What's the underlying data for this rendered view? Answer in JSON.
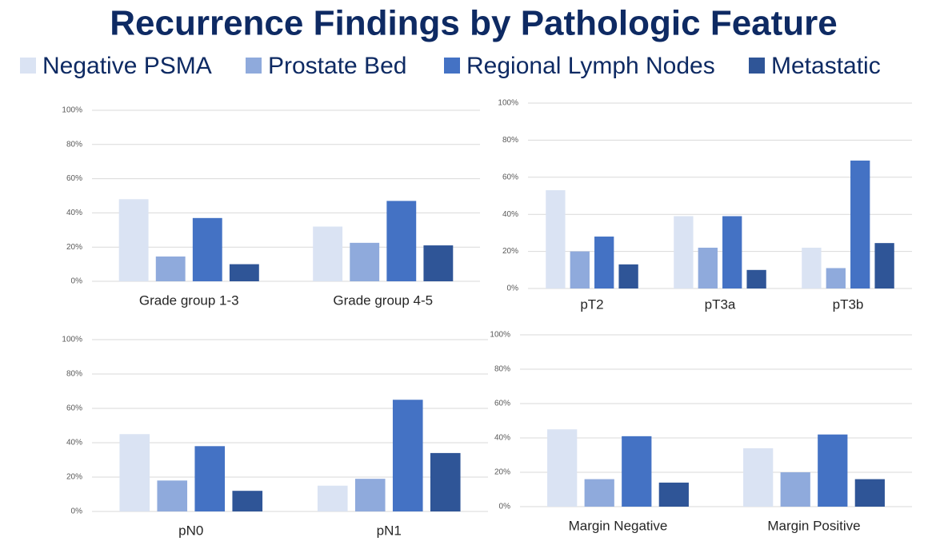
{
  "title": "Recurrence Findings by Pathologic Feature",
  "chart_data": [
    {
      "type": "bar",
      "categories": [
        "Grade group 1-3",
        "Grade group 4-5"
      ],
      "series": [
        {
          "name": "Negative PSMA",
          "color": "#dae3f3",
          "values": [
            48,
            32
          ]
        },
        {
          "name": "Prostate Bed",
          "color": "#8faadc",
          "values": [
            14.5,
            22.5
          ]
        },
        {
          "name": "Regional Lymph Nodes",
          "color": "#4472c4",
          "values": [
            37,
            47
          ]
        },
        {
          "name": "Metastatic",
          "color": "#2f5597",
          "values": [
            10,
            21
          ]
        }
      ],
      "ylim": [
        0,
        100
      ],
      "yticks": [
        {
          "value": 0,
          "label": "0%"
        },
        {
          "value": 20,
          "label": "20%"
        },
        {
          "value": 40,
          "label": "40%"
        },
        {
          "value": 60,
          "label": "60%"
        },
        {
          "value": 80,
          "label": "80%"
        },
        {
          "value": 100,
          "label": "100%"
        }
      ],
      "grid": true
    },
    {
      "type": "bar",
      "categories": [
        "pT2",
        "pT3a",
        "pT3b"
      ],
      "series": [
        {
          "name": "Negative PSMA",
          "color": "#dae3f3",
          "values": [
            53,
            39,
            22
          ]
        },
        {
          "name": "Prostate Bed",
          "color": "#8faadc",
          "values": [
            20,
            22,
            11
          ]
        },
        {
          "name": "Regional Lymph Nodes",
          "color": "#4472c4",
          "values": [
            28,
            39,
            69
          ]
        },
        {
          "name": "Metastatic",
          "color": "#2f5597",
          "values": [
            13,
            10,
            24.5
          ]
        }
      ],
      "ylim": [
        0,
        100
      ],
      "yticks": [
        {
          "value": 0,
          "label": "0%"
        },
        {
          "value": 20,
          "label": "20%"
        },
        {
          "value": 40,
          "label": "40%"
        },
        {
          "value": 60,
          "label": "60%"
        },
        {
          "value": 80,
          "label": "80%"
        },
        {
          "value": 100,
          "label": "100%"
        }
      ],
      "grid": true
    },
    {
      "type": "bar",
      "categories": [
        "pN0",
        "pN1"
      ],
      "series": [
        {
          "name": "Negative PSMA",
          "color": "#dae3f3",
          "values": [
            45,
            15
          ]
        },
        {
          "name": "Prostate Bed",
          "color": "#8faadc",
          "values": [
            18,
            19
          ]
        },
        {
          "name": "Regional Lymph Nodes",
          "color": "#4472c4",
          "values": [
            38,
            65
          ]
        },
        {
          "name": "Metastatic",
          "color": "#2f5597",
          "values": [
            12,
            34
          ]
        }
      ],
      "ylim": [
        0,
        100
      ],
      "yticks": [
        {
          "value": 0,
          "label": "0%"
        },
        {
          "value": 20,
          "label": "20%"
        },
        {
          "value": 40,
          "label": "40%"
        },
        {
          "value": 60,
          "label": "60%"
        },
        {
          "value": 80,
          "label": "80%"
        },
        {
          "value": 100,
          "label": "100%"
        }
      ],
      "grid": true
    },
    {
      "type": "bar",
      "categories": [
        "Margin Negative",
        "Margin Positive"
      ],
      "series": [
        {
          "name": "Negative PSMA",
          "color": "#dae3f3",
          "values": [
            45,
            34
          ]
        },
        {
          "name": "Prostate Bed",
          "color": "#8faadc",
          "values": [
            16,
            20
          ]
        },
        {
          "name": "Regional Lymph Nodes",
          "color": "#4472c4",
          "values": [
            41,
            42
          ]
        },
        {
          "name": "Metastatic",
          "color": "#2f5597",
          "values": [
            14,
            16
          ]
        }
      ],
      "ylim": [
        0,
        100
      ],
      "yticks": [
        {
          "value": 0,
          "label": "0%"
        },
        {
          "value": 20,
          "label": "20%"
        },
        {
          "value": 40,
          "label": "40%"
        },
        {
          "value": 60,
          "label": "60%"
        },
        {
          "value": 80,
          "label": "80%"
        },
        {
          "value": 100,
          "label": "100%"
        }
      ],
      "grid": true
    }
  ]
}
